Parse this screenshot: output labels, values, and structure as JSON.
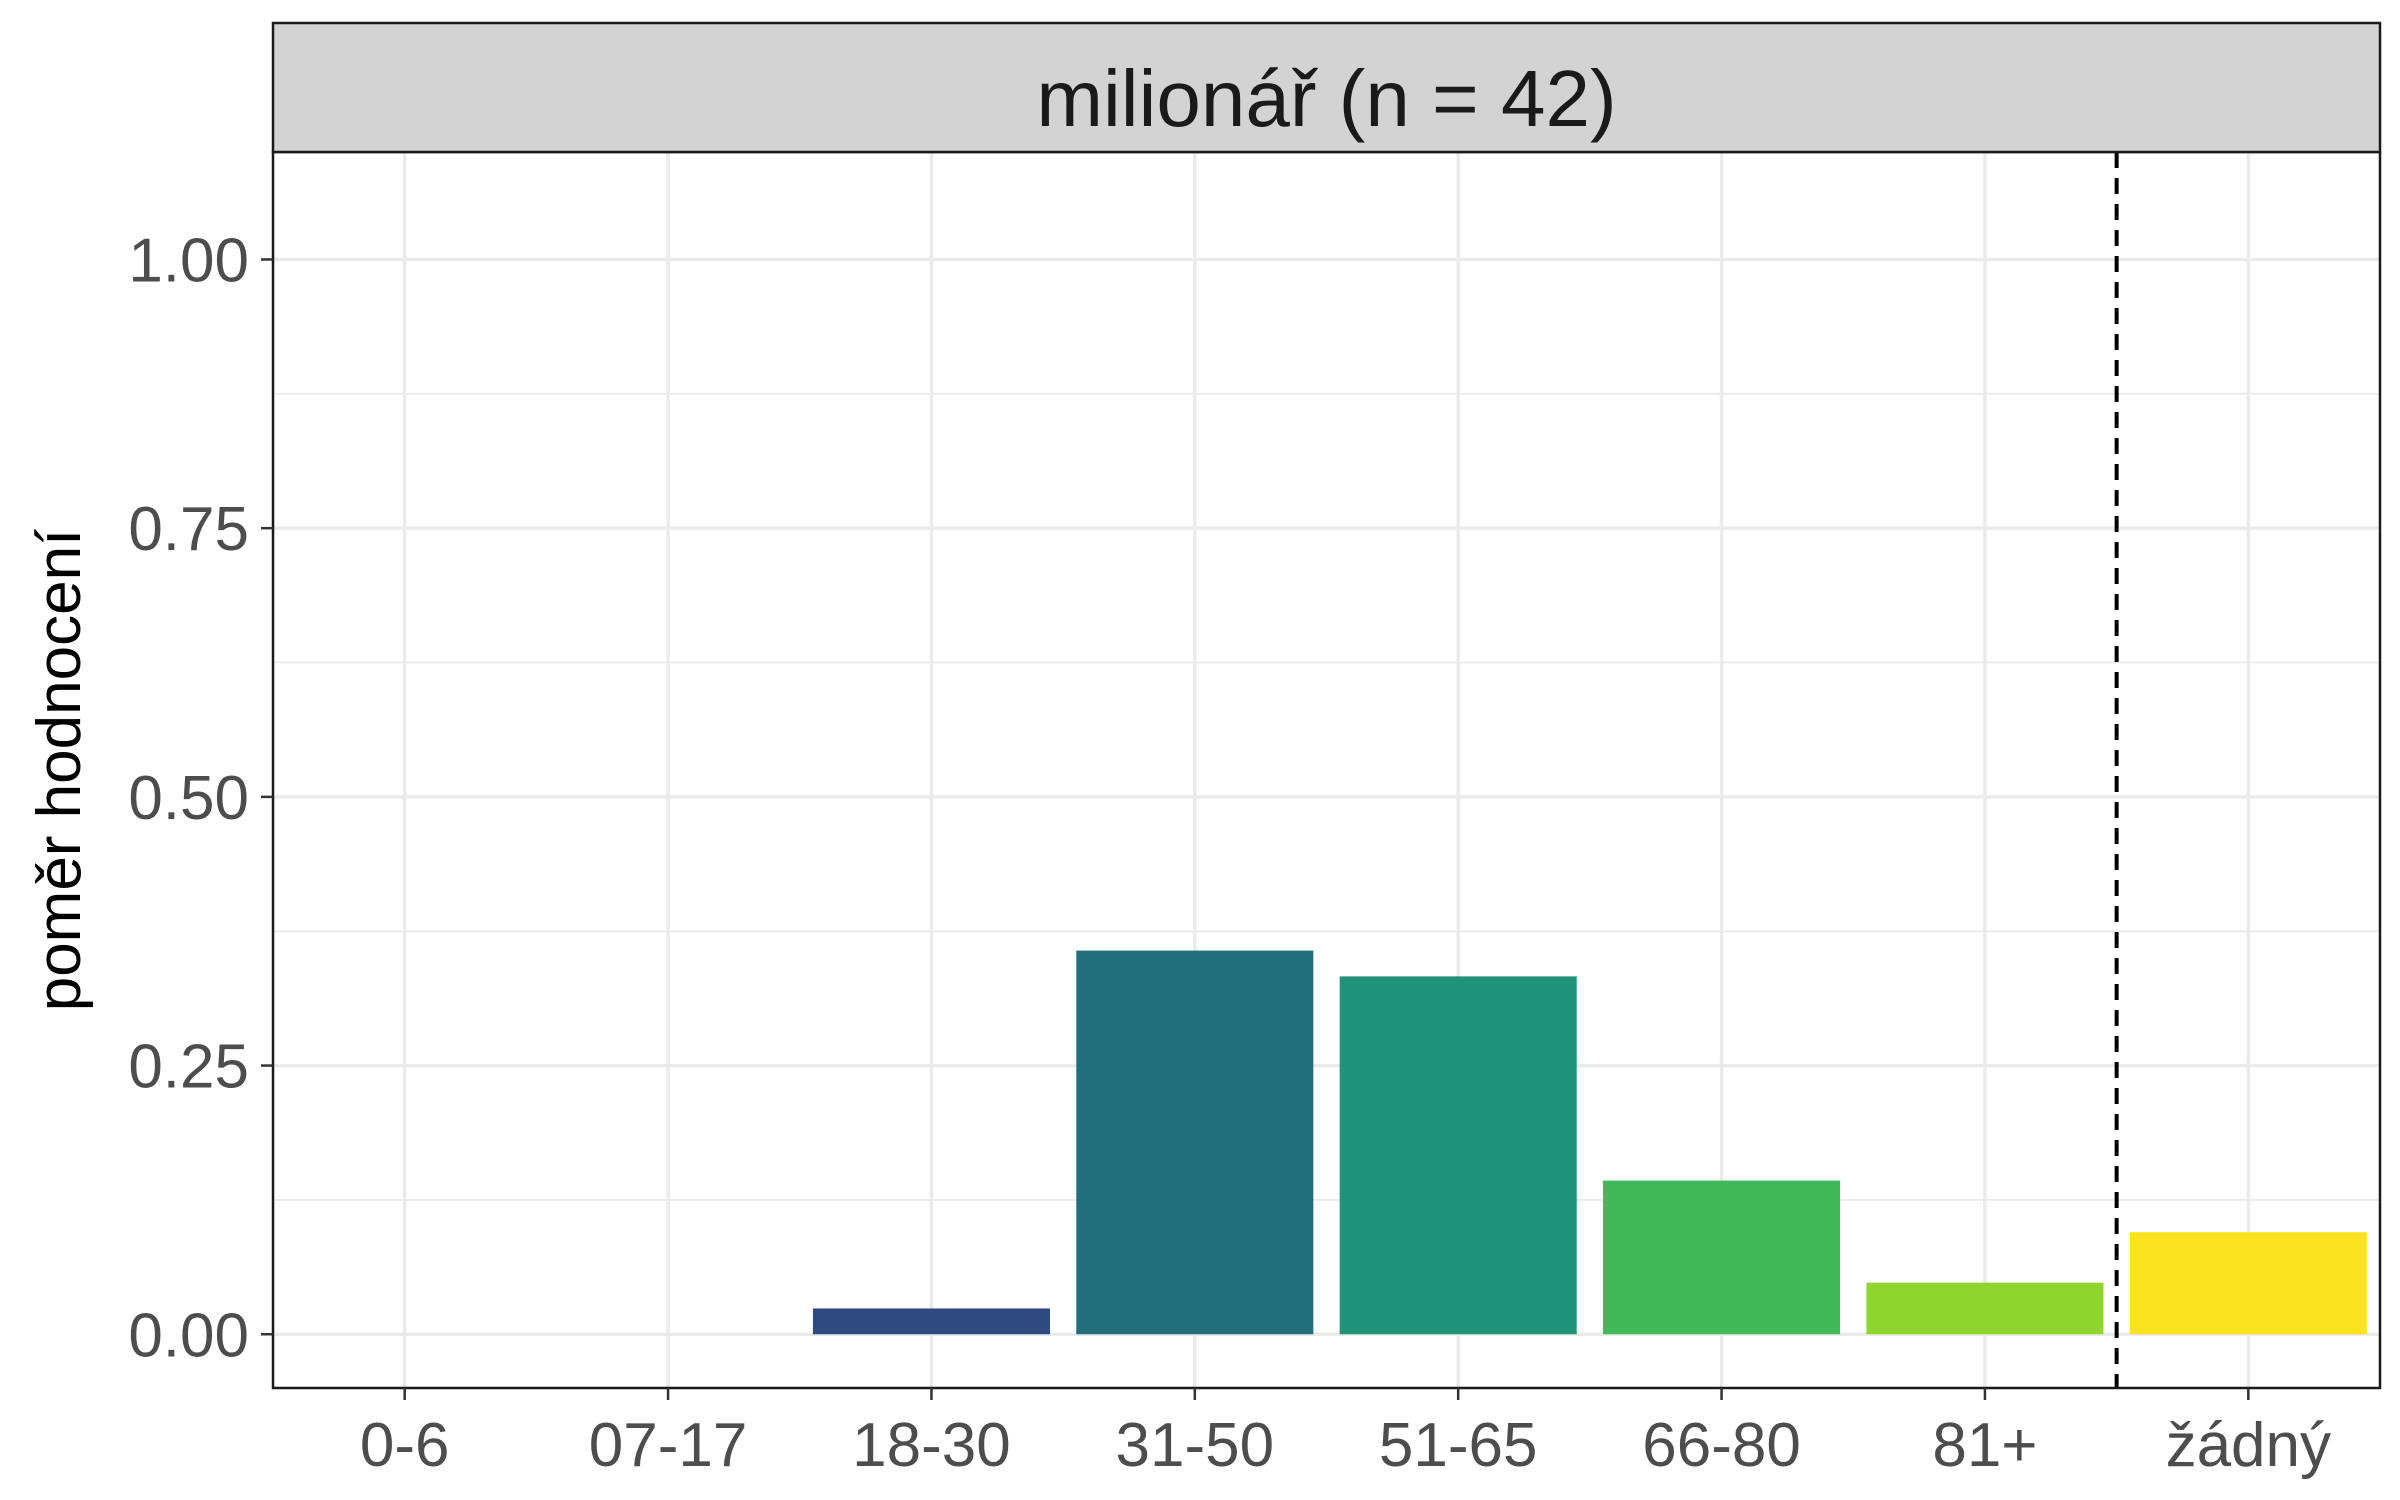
{
  "chart_data": {
    "type": "bar",
    "title": "milionář (n = 42)",
    "xlabel": "",
    "ylabel": "poměr hodnocení",
    "categories": [
      "0-6",
      "07-17",
      "18-30",
      "31-50",
      "51-65",
      "66-80",
      "81+",
      "žádný"
    ],
    "values": [
      0,
      0,
      0.024,
      0.357,
      0.333,
      0.143,
      0.048,
      0.095
    ],
    "colors": [
      "#440154",
      "#46327e",
      "#2f4a7f",
      "#226e7b",
      "#21937a",
      "#43b85a",
      "#90d52f",
      "#fbe41f"
    ],
    "ylim": [
      -0.05,
      1.1
    ],
    "yticks": [
      "0.00",
      "0.25",
      "0.50",
      "0.75",
      "1.00"
    ],
    "ytick_values": [
      0,
      0.25,
      0.5,
      0.75,
      1.0
    ],
    "reference_line": {
      "between": [
        "81+",
        "žádný"
      ],
      "style": "dashed"
    },
    "grid": true,
    "legend": "none"
  }
}
